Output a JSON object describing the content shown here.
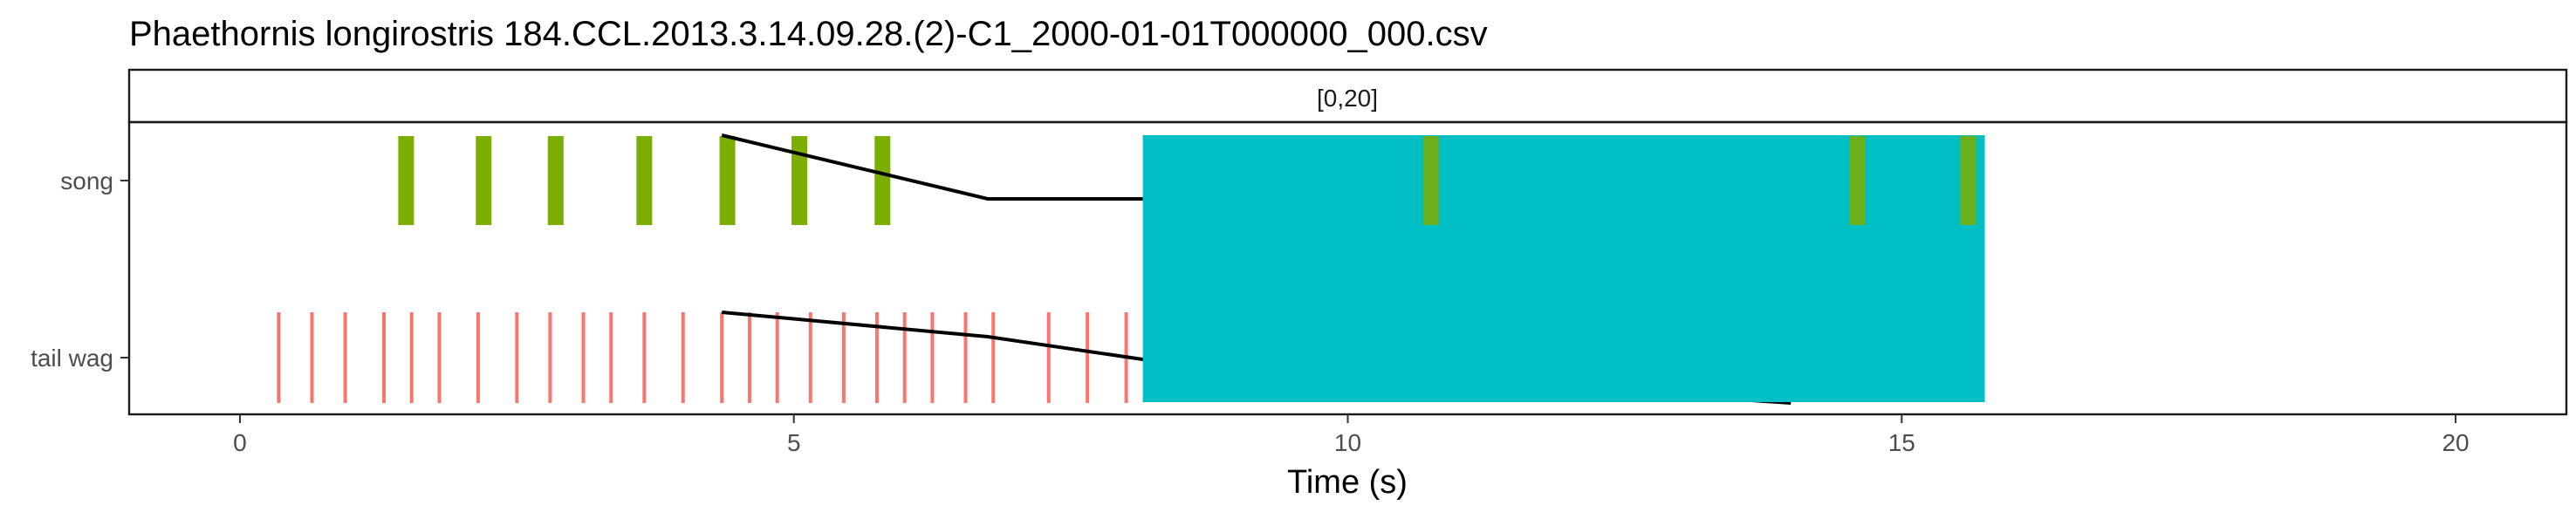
{
  "chart_data": {
    "type": "scatter",
    "title": "Phaethornis longirostris   184.CCL.2013.3.14.09.28.(2)-C1_2000-01-01T000000_000.csv",
    "facet_label": "[0,20]",
    "xlabel": "Time (s)",
    "ylabel": "",
    "xlim": [
      -1,
      21
    ],
    "x_ticks": [
      0,
      5,
      10,
      15,
      20
    ],
    "categories": [
      "song",
      "tail wag"
    ],
    "grid": false,
    "legend": "none",
    "colors": {
      "song": "#7CAE00",
      "tail wag": "#F8766D",
      "block": "#00BFC4",
      "connector": "#000000"
    },
    "series": [
      {
        "name": "song",
        "values": [
          1.5,
          2.2,
          2.85,
          3.65,
          4.4,
          5.05,
          5.8,
          10.75,
          14.6,
          15.6
        ]
      },
      {
        "name": "tail wag",
        "values": [
          0.35,
          0.65,
          0.95,
          1.3,
          1.55,
          1.8,
          2.15,
          2.5,
          2.8,
          3.1,
          3.35,
          3.65,
          4.0,
          4.35,
          4.6,
          4.85,
          5.15,
          5.45,
          5.75,
          6.0,
          6.25,
          6.55,
          6.8,
          7.3,
          7.65,
          8.0
        ]
      }
    ],
    "block": {
      "x_start": 8.15,
      "x_end": 15.75
    },
    "connector_lines": [
      {
        "points": [
          [
            4.35,
            "song-top"
          ],
          [
            6.75,
            "song-bottom"
          ],
          [
            8.15,
            "song-bottom"
          ]
        ]
      },
      {
        "points": [
          [
            4.35,
            "tail-top"
          ],
          [
            6.75,
            "tail-mid"
          ],
          [
            8.15,
            "tail-lower"
          ],
          [
            14.0,
            "tail-bottom"
          ]
        ]
      }
    ]
  }
}
